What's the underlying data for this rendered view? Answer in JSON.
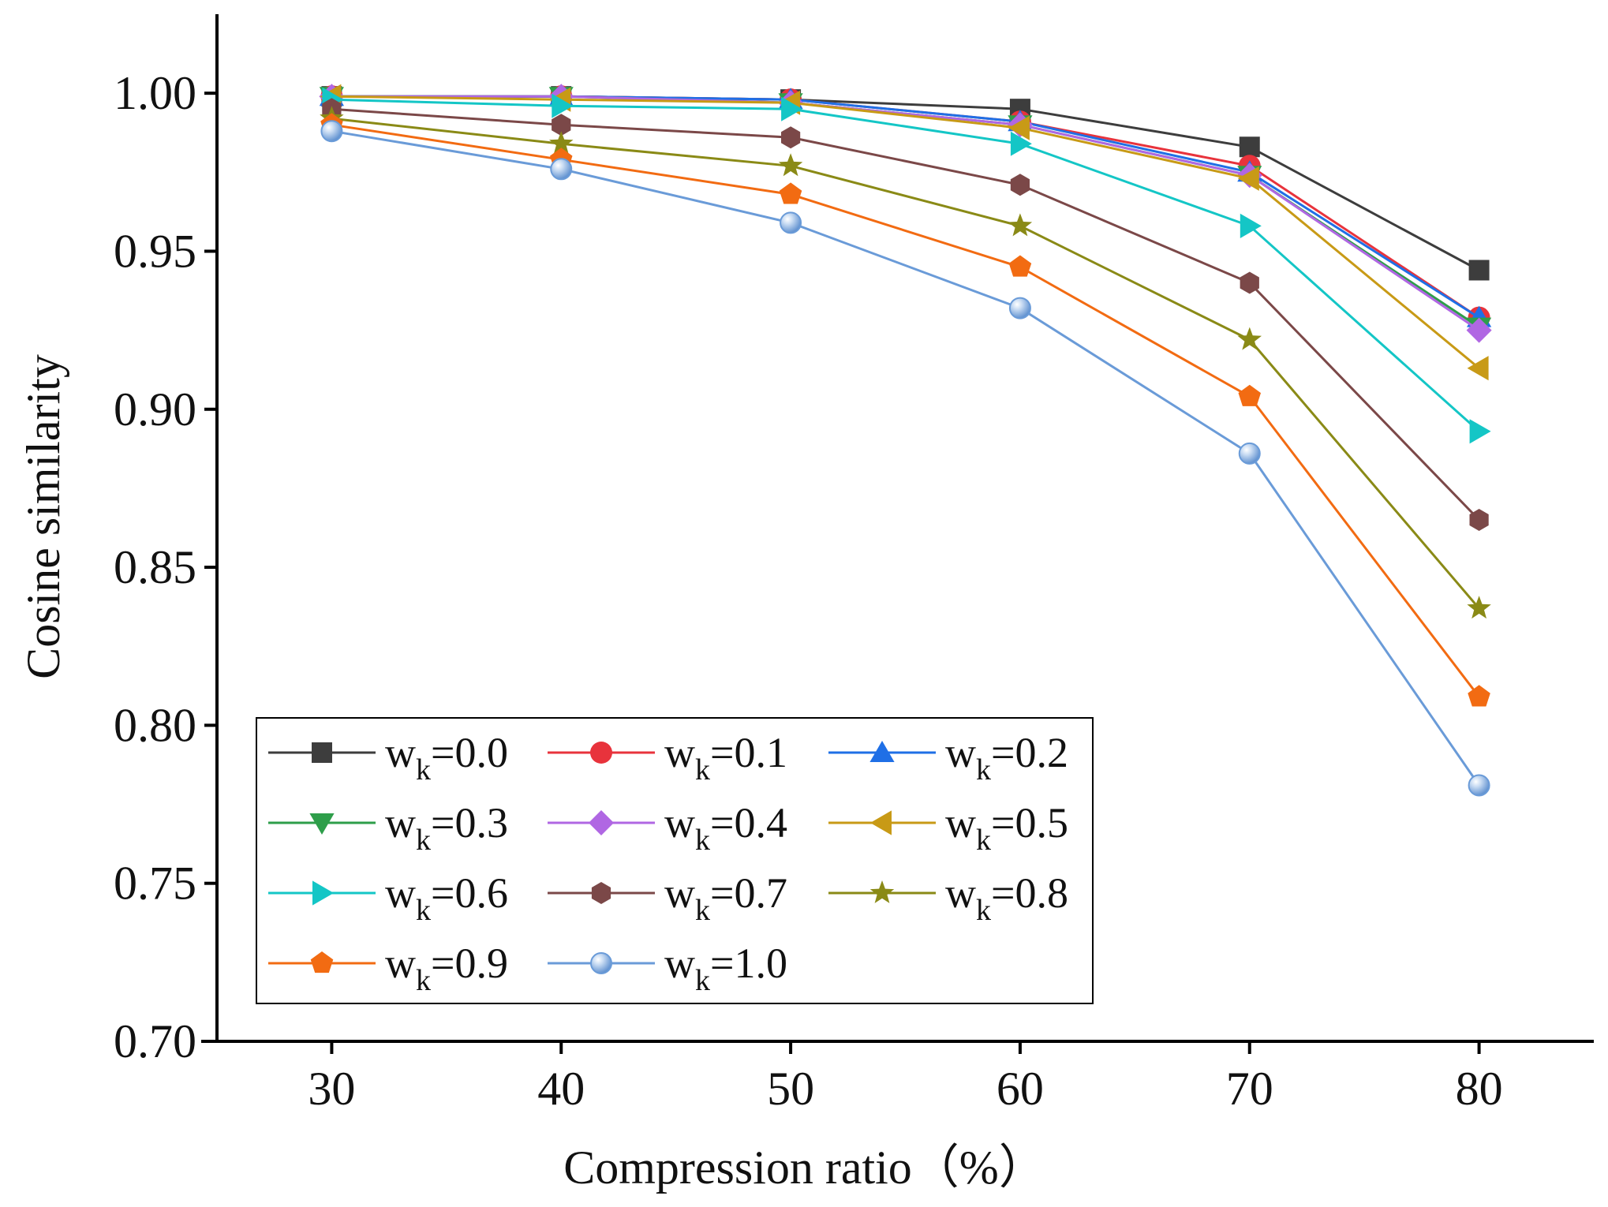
{
  "chart_data": {
    "type": "line",
    "xlabel": "Compression ratio（%）",
    "ylabel": "Cosine similarity",
    "x": [
      30,
      40,
      50,
      60,
      70,
      80
    ],
    "x_ticks": [
      "30",
      "40",
      "50",
      "60",
      "70",
      "80"
    ],
    "xlim": [
      25,
      85
    ],
    "ylim": [
      0.7,
      1.025
    ],
    "y_ticks": [
      "0.70",
      "0.75",
      "0.80",
      "0.85",
      "0.90",
      "0.95",
      "1.00"
    ],
    "grid": false,
    "legend_position": "bottom-left",
    "legend_columns": 3,
    "series": [
      {
        "name": "wk=0.0",
        "label_main": "w",
        "label_sub": "k",
        "label_rest": "=0.0",
        "color": "#3d3d3d",
        "marker": "square",
        "values": [
          0.999,
          0.999,
          0.998,
          0.995,
          0.983,
          0.944
        ]
      },
      {
        "name": "wk=0.1",
        "label_main": "w",
        "label_sub": "k",
        "label_rest": "=0.1",
        "color": "#e8333c",
        "marker": "circle",
        "values": [
          0.999,
          0.999,
          0.998,
          0.991,
          0.977,
          0.929
        ]
      },
      {
        "name": "wk=0.2",
        "label_main": "w",
        "label_sub": "k",
        "label_rest": "=0.2",
        "color": "#1f6fe6",
        "marker": "triangle-up",
        "values": [
          0.999,
          0.999,
          0.998,
          0.991,
          0.975,
          0.929
        ]
      },
      {
        "name": "wk=0.3",
        "label_main": "w",
        "label_sub": "k",
        "label_rest": "=0.3",
        "color": "#2e9e4a",
        "marker": "triangle-down",
        "values": [
          0.999,
          0.999,
          0.997,
          0.99,
          0.974,
          0.926
        ]
      },
      {
        "name": "wk=0.4",
        "label_main": "w",
        "label_sub": "k",
        "label_rest": "=0.4",
        "color": "#b067e3",
        "marker": "diamond",
        "values": [
          0.999,
          0.999,
          0.997,
          0.99,
          0.974,
          0.925
        ]
      },
      {
        "name": "wk=0.5",
        "label_main": "w",
        "label_sub": "k",
        "label_rest": "=0.5",
        "color": "#c89a16",
        "marker": "triangle-left",
        "values": [
          0.999,
          0.998,
          0.997,
          0.989,
          0.973,
          0.913
        ]
      },
      {
        "name": "wk=0.6",
        "label_main": "w",
        "label_sub": "k",
        "label_rest": "=0.6",
        "color": "#14c6c6",
        "marker": "triangle-right",
        "values": [
          0.998,
          0.996,
          0.995,
          0.984,
          0.958,
          0.893
        ]
      },
      {
        "name": "wk=0.7",
        "label_main": "w",
        "label_sub": "k",
        "label_rest": "=0.7",
        "color": "#7b4848",
        "marker": "hexagon",
        "values": [
          0.995,
          0.99,
          0.986,
          0.971,
          0.94,
          0.865
        ]
      },
      {
        "name": "wk=0.8",
        "label_main": "w",
        "label_sub": "k",
        "label_rest": "=0.8",
        "color": "#8a8a16",
        "marker": "star",
        "values": [
          0.992,
          0.984,
          0.977,
          0.958,
          0.922,
          0.837
        ]
      },
      {
        "name": "wk=0.9",
        "label_main": "w",
        "label_sub": "k",
        "label_rest": "=0.9",
        "color": "#f26b12",
        "marker": "pentagon",
        "values": [
          0.99,
          0.979,
          0.968,
          0.945,
          0.904,
          0.809
        ]
      },
      {
        "name": "wk=1.0",
        "label_main": "w",
        "label_sub": "k",
        "label_rest": "=1.0",
        "color": "#6a9bd8",
        "marker": "sphere",
        "values": [
          0.988,
          0.976,
          0.959,
          0.932,
          0.886,
          0.781
        ]
      }
    ]
  }
}
